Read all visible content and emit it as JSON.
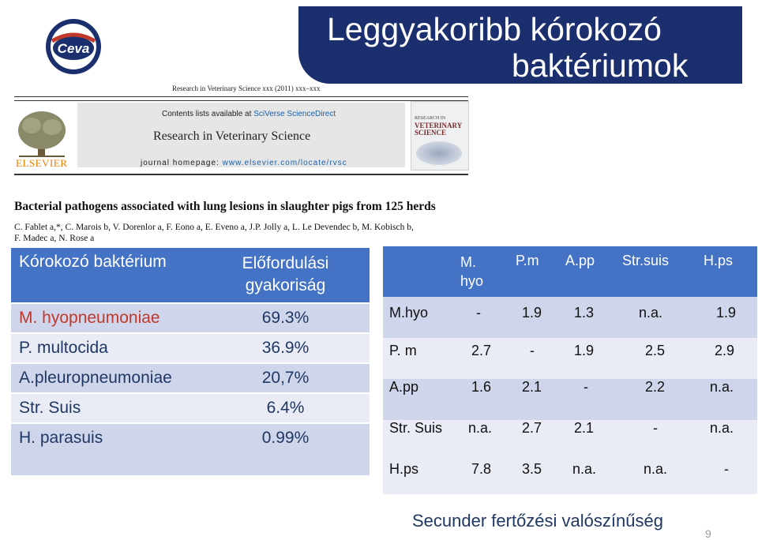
{
  "brand": {
    "logo_text": "Ceva",
    "primary_color": "#1b2f6e",
    "accent_color": "#c0392b"
  },
  "slide": {
    "title_line1": "Leggyakoribb kórokozó",
    "title_line2": "baktériumok",
    "page_number": "9",
    "footer": "Secunder fertőzési valószínűség"
  },
  "paper": {
    "journal_ref": "Research in Veterinary Science xxx (2011) xxx–xxx",
    "contents_prefix": "Contents lists available at",
    "contents_link": "SciVerse ScienceDirect",
    "journal_name": "Research in Veterinary Science",
    "homepage_prefix": "journal homepage:",
    "homepage_link": "www.elsevier.com/locate/rvsc",
    "publisher": "ELSEVIER",
    "cover_small": "RESEARCH IN",
    "cover_big": "VETERINARY SCIENCE",
    "title": "Bacterial pathogens associated with lung lesions in slaughter pigs from 125 herds",
    "authors_line1": "C. Fablet a,*, C. Marois b, V. Dorenlor a, F. Eono a, E. Eveno a, J.P. Jolly a, L. Le Devendec b, M. Kobisch b,",
    "authors_line2": "F. Madec a, N. Rose a"
  },
  "prevalence_table": {
    "headers": [
      "Kórokozó baktérium",
      "Előfordulási gyakoriság"
    ],
    "rows": [
      {
        "pathogen": "M. hyopneumoniae",
        "value": "69.3%"
      },
      {
        "pathogen": "P. multocida",
        "value": "36.9%"
      },
      {
        "pathogen": "A.pleuropneumoniae",
        "value": "20,7%"
      },
      {
        "pathogen": "Str. Suis",
        "value": "6.4%"
      },
      {
        "pathogen": "H. parasuis",
        "value": "0.99%"
      }
    ]
  },
  "coinfection_matrix": {
    "col_headers": [
      "M. hyo",
      "P.m",
      "A.pp",
      "Str.suis",
      "H.ps"
    ],
    "rows": [
      {
        "label": "M.hyo",
        "values": [
          "-",
          "1.9",
          "1.3",
          "n.a.",
          "1.9"
        ]
      },
      {
        "label": "P. m",
        "values": [
          "2.7",
          "-",
          "1.9",
          "2.5",
          "2.9"
        ]
      },
      {
        "label": "A.pp",
        "values": [
          "1.6",
          "2.1",
          "-",
          "2.2",
          "n.a."
        ]
      },
      {
        "label": "Str. Suis",
        "values": [
          "n.a.",
          "2.7",
          "2.1",
          "-",
          "n.a."
        ]
      },
      {
        "label": "H.ps",
        "values": [
          "7.8",
          "3.5",
          "n.a.",
          "n.a.",
          "-"
        ]
      }
    ]
  }
}
